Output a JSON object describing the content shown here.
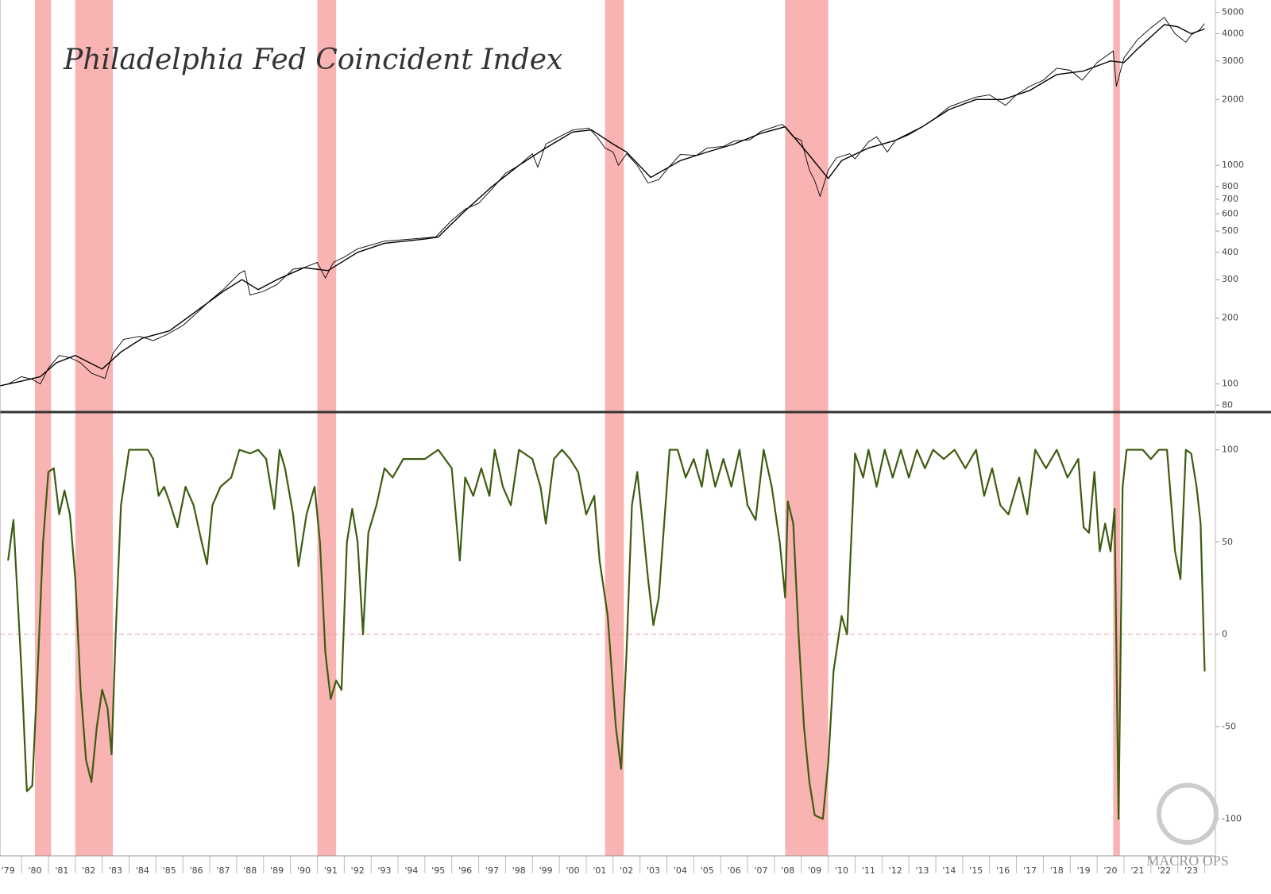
{
  "chart_data": [
    {
      "type": "line",
      "title": "Philadelphia Fed Coincident Index",
      "log": true,
      "xlim": [
        1978.7,
        2023.9
      ],
      "ylim": [
        75,
        5700
      ],
      "yticks": [
        80,
        100,
        200,
        300,
        400,
        500,
        600,
        700,
        800,
        1000,
        2000,
        3000,
        4000,
        5000
      ],
      "shaded_ranges": [
        [
          1980.0,
          1980.6
        ],
        [
          1981.5,
          1982.9
        ],
        [
          1990.5,
          1991.2
        ],
        [
          2001.2,
          2001.9
        ],
        [
          2007.9,
          2009.5
        ],
        [
          2020.1,
          2020.35
        ]
      ],
      "shade_color": "#f9a0a0",
      "series": [
        {
          "color": "#000000",
          "x": [
            1978.7,
            1979.0,
            1979.5,
            1979.9,
            1980.2,
            1980.5,
            1980.9,
            1981.3,
            1981.7,
            1982.1,
            1982.6,
            1982.9,
            1983.3,
            1983.9,
            1984.4,
            1984.9,
            1985.5,
            1986.0,
            1986.5,
            1987.0,
            1987.6,
            1987.8,
            1988.0,
            1988.5,
            1989.0,
            1989.6,
            1990.0,
            1990.5,
            1990.8,
            1991.1,
            1991.5,
            1992.0,
            1993.0,
            1994.0,
            1994.9,
            1995.5,
            1996.0,
            1996.5,
            1997.0,
            1997.5,
            1998.0,
            1998.5,
            1998.7,
            1999.0,
            1999.5,
            2000.0,
            2000.6,
            2000.9,
            2001.2,
            2001.5,
            2001.7,
            2002.0,
            2002.4,
            2002.8,
            2003.2,
            2003.6,
            2004.0,
            2004.6,
            2005.0,
            2005.6,
            2006.0,
            2006.6,
            2007.0,
            2007.5,
            2007.8,
            2008.2,
            2008.5,
            2008.8,
            2009.0,
            2009.2,
            2009.5,
            2009.8,
            2010.3,
            2010.5,
            2011.0,
            2011.3,
            2011.7,
            2012.0,
            2012.5,
            2013.0,
            2013.5,
            2014.0,
            2014.5,
            2015.0,
            2015.5,
            2016.1,
            2016.5,
            2017.0,
            2017.5,
            2018.0,
            2018.5,
            2018.95,
            2019.5,
            2020.1,
            2020.22,
            2020.5,
            2021.0,
            2021.5,
            2022.0,
            2022.4,
            2022.8,
            2023.0,
            2023.3,
            2023.5
          ],
          "values": [
            98,
            100,
            108,
            105,
            100,
            118,
            135,
            132,
            125,
            112,
            106,
            138,
            160,
            165,
            158,
            168,
            185,
            210,
            240,
            270,
            320,
            330,
            255,
            265,
            285,
            335,
            340,
            360,
            305,
            360,
            380,
            415,
            450,
            460,
            470,
            560,
            630,
            670,
            780,
            920,
            1000,
            1130,
            980,
            1250,
            1350,
            1450,
            1480,
            1350,
            1200,
            1150,
            1000,
            1130,
            1000,
            830,
            860,
            990,
            1120,
            1110,
            1200,
            1220,
            1290,
            1310,
            1430,
            1500,
            1540,
            1350,
            1300,
            950,
            850,
            720,
            950,
            1080,
            1130,
            1070,
            1280,
            1350,
            1150,
            1300,
            1380,
            1500,
            1650,
            1850,
            1950,
            2050,
            2100,
            1880,
            2100,
            2300,
            2450,
            2780,
            2720,
            2450,
            2950,
            3330,
            2300,
            3100,
            3750,
            4250,
            4750,
            4000,
            3650,
            3950,
            4150,
            4450
          ]
        },
        {
          "color": "#000000",
          "x": [
            1978.7,
            1979.5,
            1980.2,
            1980.8,
            1981.5,
            1982.5,
            1983.2,
            1984.0,
            1985.0,
            1986.0,
            1987.0,
            1987.7,
            1988.3,
            1989.0,
            1990.0,
            1990.9,
            1992.0,
            1993.0,
            1994.5,
            1995.0,
            1996.0,
            1997.0,
            1998.0,
            1999.0,
            2000.0,
            2000.7,
            2001.5,
            2002.0,
            2002.9,
            2004.0,
            2005.0,
            2006.0,
            2007.0,
            2007.9,
            2008.7,
            2009.5,
            2010.0,
            2011.0,
            2012.0,
            2013.0,
            2014.0,
            2015.0,
            2016.0,
            2017.0,
            2018.0,
            2019.0,
            2020.0,
            2020.5,
            2021.0,
            2022.0,
            2022.5,
            2023.0,
            2023.5
          ],
          "values": [
            98,
            103,
            108,
            125,
            135,
            117,
            140,
            162,
            175,
            215,
            265,
            300,
            270,
            300,
            340,
            330,
            400,
            440,
            460,
            470,
            620,
            800,
            1000,
            1200,
            1420,
            1450,
            1250,
            1150,
            880,
            1050,
            1150,
            1250,
            1400,
            1500,
            1150,
            870,
            1050,
            1200,
            1300,
            1500,
            1800,
            2000,
            2000,
            2200,
            2600,
            2700,
            3000,
            2950,
            3400,
            4400,
            4300,
            4000,
            4200
          ]
        }
      ]
    },
    {
      "type": "line",
      "xlim": [
        1978.7,
        2023.9
      ],
      "ylim": [
        -120,
        120
      ],
      "yticks": [
        -100,
        -50,
        0,
        50,
        100
      ],
      "hline": 0,
      "hline_color": "#e8a0a0",
      "shaded_ranges": [
        [
          1980.0,
          1980.6
        ],
        [
          1981.5,
          1982.9
        ],
        [
          1990.5,
          1991.2
        ],
        [
          2001.2,
          2001.9
        ],
        [
          2007.9,
          2009.5
        ],
        [
          2020.1,
          2020.35
        ]
      ],
      "shade_color": "#f9a0a0",
      "xticks": [
        {
          "value": 1979,
          "label": "'79"
        },
        {
          "value": 1980,
          "label": "'80"
        },
        {
          "value": 1981,
          "label": "'81"
        },
        {
          "value": 1982,
          "label": "'82"
        },
        {
          "value": 1983,
          "label": "'83"
        },
        {
          "value": 1984,
          "label": "'84"
        },
        {
          "value": 1985,
          "label": "'85"
        },
        {
          "value": 1986,
          "label": "'86"
        },
        {
          "value": 1987,
          "label": "'87"
        },
        {
          "value": 1988,
          "label": "'88"
        },
        {
          "value": 1989,
          "label": "'89"
        },
        {
          "value": 1990,
          "label": "'90"
        },
        {
          "value": 1991,
          "label": "'91"
        },
        {
          "value": 1992,
          "label": "'92"
        },
        {
          "value": 1993,
          "label": "'93"
        },
        {
          "value": 1994,
          "label": "'94"
        },
        {
          "value": 1995,
          "label": "'95"
        },
        {
          "value": 1996,
          "label": "'96"
        },
        {
          "value": 1997,
          "label": "'97"
        },
        {
          "value": 1998,
          "label": "'98"
        },
        {
          "value": 1999,
          "label": "'99"
        },
        {
          "value": 2000,
          "label": "'00"
        },
        {
          "value": 2001,
          "label": "'01"
        },
        {
          "value": 2002,
          "label": "'02"
        },
        {
          "value": 2003,
          "label": "'03"
        },
        {
          "value": 2004,
          "label": "'04"
        },
        {
          "value": 2005,
          "label": "'05"
        },
        {
          "value": 2006,
          "label": "'06"
        },
        {
          "value": 2007,
          "label": "'07"
        },
        {
          "value": 2008,
          "label": "'08"
        },
        {
          "value": 2009,
          "label": "'09"
        },
        {
          "value": 2010,
          "label": "'10"
        },
        {
          "value": 2011,
          "label": "'11"
        },
        {
          "value": 2012,
          "label": "'12"
        },
        {
          "value": 2013,
          "label": "'13"
        },
        {
          "value": 2014,
          "label": "'14"
        },
        {
          "value": 2015,
          "label": "'15"
        },
        {
          "value": 2016,
          "label": "'16"
        },
        {
          "value": 2017,
          "label": "'17"
        },
        {
          "value": 2018,
          "label": "'18"
        },
        {
          "value": 2019,
          "label": "'19"
        },
        {
          "value": 2020,
          "label": "'20"
        },
        {
          "value": 2021,
          "label": "'21"
        },
        {
          "value": 2022,
          "label": "'22"
        },
        {
          "value": 2023,
          "label": "'23"
        }
      ],
      "watermark": "MACRO OPS",
      "series": [
        {
          "color": "#3d5c0f",
          "x": [
            1979.0,
            1979.2,
            1979.5,
            1979.7,
            1979.9,
            1980.1,
            1980.3,
            1980.5,
            1980.7,
            1980.9,
            1981.1,
            1981.3,
            1981.5,
            1981.7,
            1981.9,
            1982.1,
            1982.3,
            1982.5,
            1982.7,
            1982.85,
            1983.0,
            1983.2,
            1983.5,
            1983.8,
            1984.2,
            1984.4,
            1984.6,
            1984.8,
            1985.0,
            1985.3,
            1985.6,
            1985.9,
            1986.2,
            1986.4,
            1986.6,
            1986.9,
            1987.3,
            1987.6,
            1988.0,
            1988.3,
            1988.6,
            1988.9,
            1989.1,
            1989.3,
            1989.6,
            1989.8,
            1990.1,
            1990.4,
            1990.6,
            1990.8,
            1991.0,
            1991.2,
            1991.4,
            1991.6,
            1991.8,
            1992.0,
            1992.2,
            1992.4,
            1992.7,
            1993.0,
            1993.3,
            1993.7,
            1994.0,
            1994.5,
            1995.0,
            1995.5,
            1995.8,
            1996.0,
            1996.3,
            1996.6,
            1996.9,
            1997.1,
            1997.4,
            1997.7,
            1998.0,
            1998.5,
            1998.8,
            1999.0,
            1999.3,
            1999.6,
            1999.9,
            2000.2,
            2000.5,
            2000.8,
            2001.0,
            2001.3,
            2001.6,
            2001.8,
            2002.0,
            2002.2,
            2002.4,
            2002.6,
            2002.8,
            2003.0,
            2003.2,
            2003.4,
            2003.6,
            2003.9,
            2004.2,
            2004.5,
            2004.8,
            2005.0,
            2005.3,
            2005.6,
            2005.9,
            2006.2,
            2006.5,
            2006.8,
            2007.1,
            2007.4,
            2007.7,
            2007.9,
            2008.0,
            2008.2,
            2008.4,
            2008.6,
            2008.8,
            2009.0,
            2009.3,
            2009.5,
            2009.7,
            2010.0,
            2010.2,
            2010.5,
            2010.8,
            2011.0,
            2011.3,
            2011.6,
            2011.9,
            2012.2,
            2012.5,
            2012.8,
            2013.1,
            2013.4,
            2013.8,
            2014.2,
            2014.6,
            2015.0,
            2015.3,
            2015.6,
            2015.9,
            2016.2,
            2016.6,
            2016.9,
            2017.2,
            2017.6,
            2018.0,
            2018.4,
            2018.8,
            2019.0,
            2019.2,
            2019.4,
            2019.6,
            2019.8,
            2020.0,
            2020.15,
            2020.3,
            2020.45,
            2020.6,
            2020.9,
            2021.2,
            2021.5,
            2021.8,
            2022.1,
            2022.4,
            2022.6,
            2022.8,
            2023.0,
            2023.2,
            2023.35,
            2023.5
          ],
          "values": [
            40,
            62,
            -20,
            -85,
            -82,
            -20,
            50,
            88,
            90,
            65,
            78,
            65,
            30,
            -30,
            -68,
            -80,
            -50,
            -30,
            -40,
            -65,
            0,
            70,
            100,
            100,
            100,
            95,
            75,
            80,
            72,
            58,
            80,
            70,
            50,
            38,
            70,
            80,
            85,
            100,
            98,
            100,
            95,
            68,
            100,
            90,
            65,
            37,
            65,
            80,
            50,
            -10,
            -35,
            -25,
            -30,
            50,
            68,
            50,
            0,
            55,
            70,
            90,
            85,
            95,
            95,
            95,
            100,
            90,
            40,
            85,
            75,
            90,
            75,
            100,
            80,
            70,
            100,
            95,
            80,
            60,
            95,
            100,
            95,
            88,
            65,
            75,
            40,
            10,
            -50,
            -73,
            -10,
            70,
            88,
            60,
            30,
            5,
            20,
            60,
            100,
            100,
            85,
            95,
            80,
            100,
            80,
            95,
            80,
            100,
            70,
            62,
            100,
            80,
            50,
            20,
            72,
            60,
            0,
            -50,
            -80,
            -98,
            -100,
            -70,
            -20,
            10,
            0,
            98,
            85,
            100,
            80,
            100,
            85,
            100,
            85,
            100,
            90,
            100,
            95,
            100,
            90,
            100,
            75,
            90,
            70,
            65,
            85,
            65,
            100,
            90,
            100,
            85,
            95,
            58,
            55,
            88,
            45,
            60,
            45,
            68,
            -100,
            80,
            100,
            100,
            100,
            95,
            100,
            100,
            45,
            30,
            100,
            98,
            80,
            60,
            -20
          ]
        }
      ]
    }
  ]
}
